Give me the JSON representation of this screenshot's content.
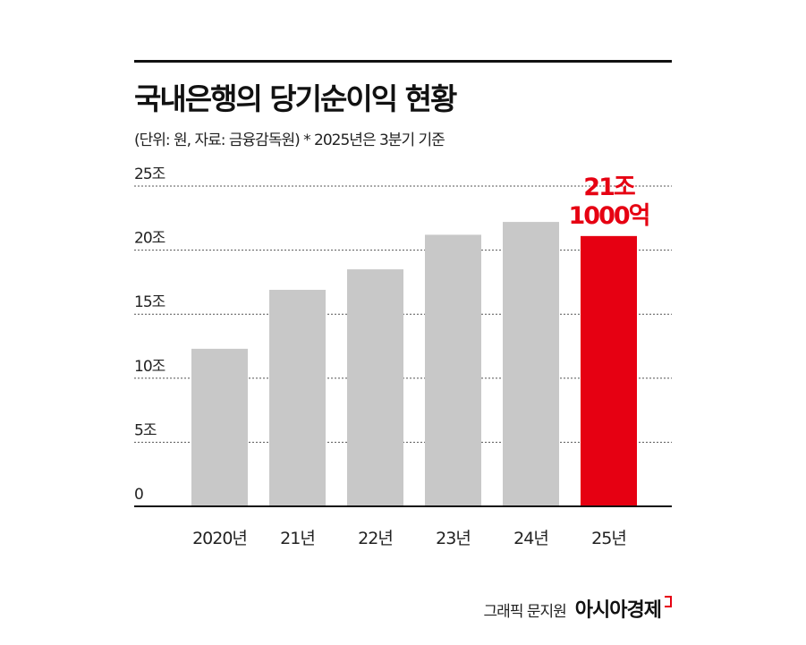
{
  "header": {
    "title": "국내은행의 당기순이익 현황",
    "subtitle": "(단위: 원, 자료: 금융감독원)  * 2025년은 3분기 기준"
  },
  "footer": {
    "credit": "그래픽 문지원",
    "logo": "아시아경제"
  },
  "colors": {
    "bar": "#c8c8c8",
    "highlight": "#e60012",
    "axis": "#111111",
    "grid": "#555555"
  },
  "chart_data": {
    "type": "bar",
    "categories": [
      "2020년",
      "21년",
      "22년",
      "23년",
      "24년",
      "25년"
    ],
    "values": [
      12.3,
      16.9,
      18.5,
      21.2,
      22.2,
      21.1
    ],
    "unit": "조",
    "ylim": [
      0,
      25
    ],
    "yticks": [
      0,
      5,
      10,
      15,
      20,
      25
    ],
    "ytick_labels": [
      "0",
      "5조",
      "10조",
      "15조",
      "20조",
      "25조"
    ],
    "grid": true,
    "highlight_index": 5,
    "annotation": [
      "21조",
      "1000억"
    ]
  }
}
